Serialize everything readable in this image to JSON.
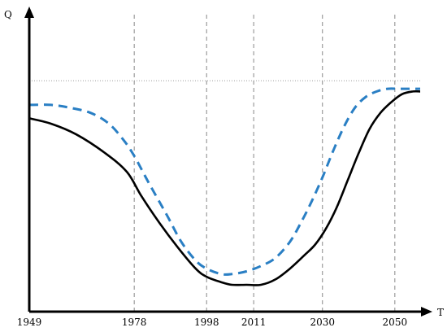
{
  "chart_data": {
    "type": "line",
    "xlabel": "T",
    "ylabel": "Q",
    "x_ticks": [
      1949,
      1978,
      1998,
      2011,
      2030,
      2050
    ],
    "x_tick_labels": [
      "1949",
      "1978",
      "1998",
      "2011",
      "2030",
      "2050"
    ],
    "vertical_guides_at": [
      1978,
      1998,
      2011,
      2030,
      2050
    ],
    "horizontal_reference": 0.86,
    "xlim": [
      1949,
      2057
    ],
    "ylim": [
      0,
      1.1
    ],
    "y_scale_note": "no numeric y ticks shown; values estimated in relative units",
    "grid": false,
    "legend": "none",
    "series": [
      {
        "style": "solid",
        "color": "#000000",
        "x": [
          1949,
          1955,
          1962,
          1970,
          1976,
          1980,
          1985,
          1990,
          1995,
          1998,
          2002,
          2005,
          2009,
          2013,
          2017,
          2021,
          2025,
          2028,
          2031,
          2034,
          2037,
          2040,
          2043,
          2046,
          2049,
          2052,
          2055,
          2057
        ],
        "y": [
          0.72,
          0.7,
          0.66,
          0.59,
          0.52,
          0.43,
          0.33,
          0.24,
          0.16,
          0.13,
          0.11,
          0.1,
          0.1,
          0.1,
          0.12,
          0.16,
          0.21,
          0.25,
          0.31,
          0.39,
          0.49,
          0.59,
          0.68,
          0.74,
          0.78,
          0.81,
          0.82,
          0.82
        ]
      },
      {
        "style": "dashed",
        "color": "#2a7fc4",
        "x": [
          1949,
          1955,
          1960,
          1966,
          1971,
          1975,
          1978,
          1982,
          1987,
          1991,
          1995,
          1998,
          2002,
          2005,
          2009,
          2013,
          2017,
          2021,
          2024,
          2027,
          2030,
          2033,
          2036,
          2039,
          2042,
          2045,
          2048,
          2051,
          2054,
          2057
        ],
        "y": [
          0.77,
          0.77,
          0.76,
          0.74,
          0.7,
          0.64,
          0.58,
          0.48,
          0.36,
          0.26,
          0.19,
          0.16,
          0.14,
          0.14,
          0.15,
          0.17,
          0.2,
          0.26,
          0.33,
          0.41,
          0.5,
          0.6,
          0.69,
          0.76,
          0.8,
          0.82,
          0.83,
          0.83,
          0.83,
          0.83
        ]
      }
    ]
  }
}
